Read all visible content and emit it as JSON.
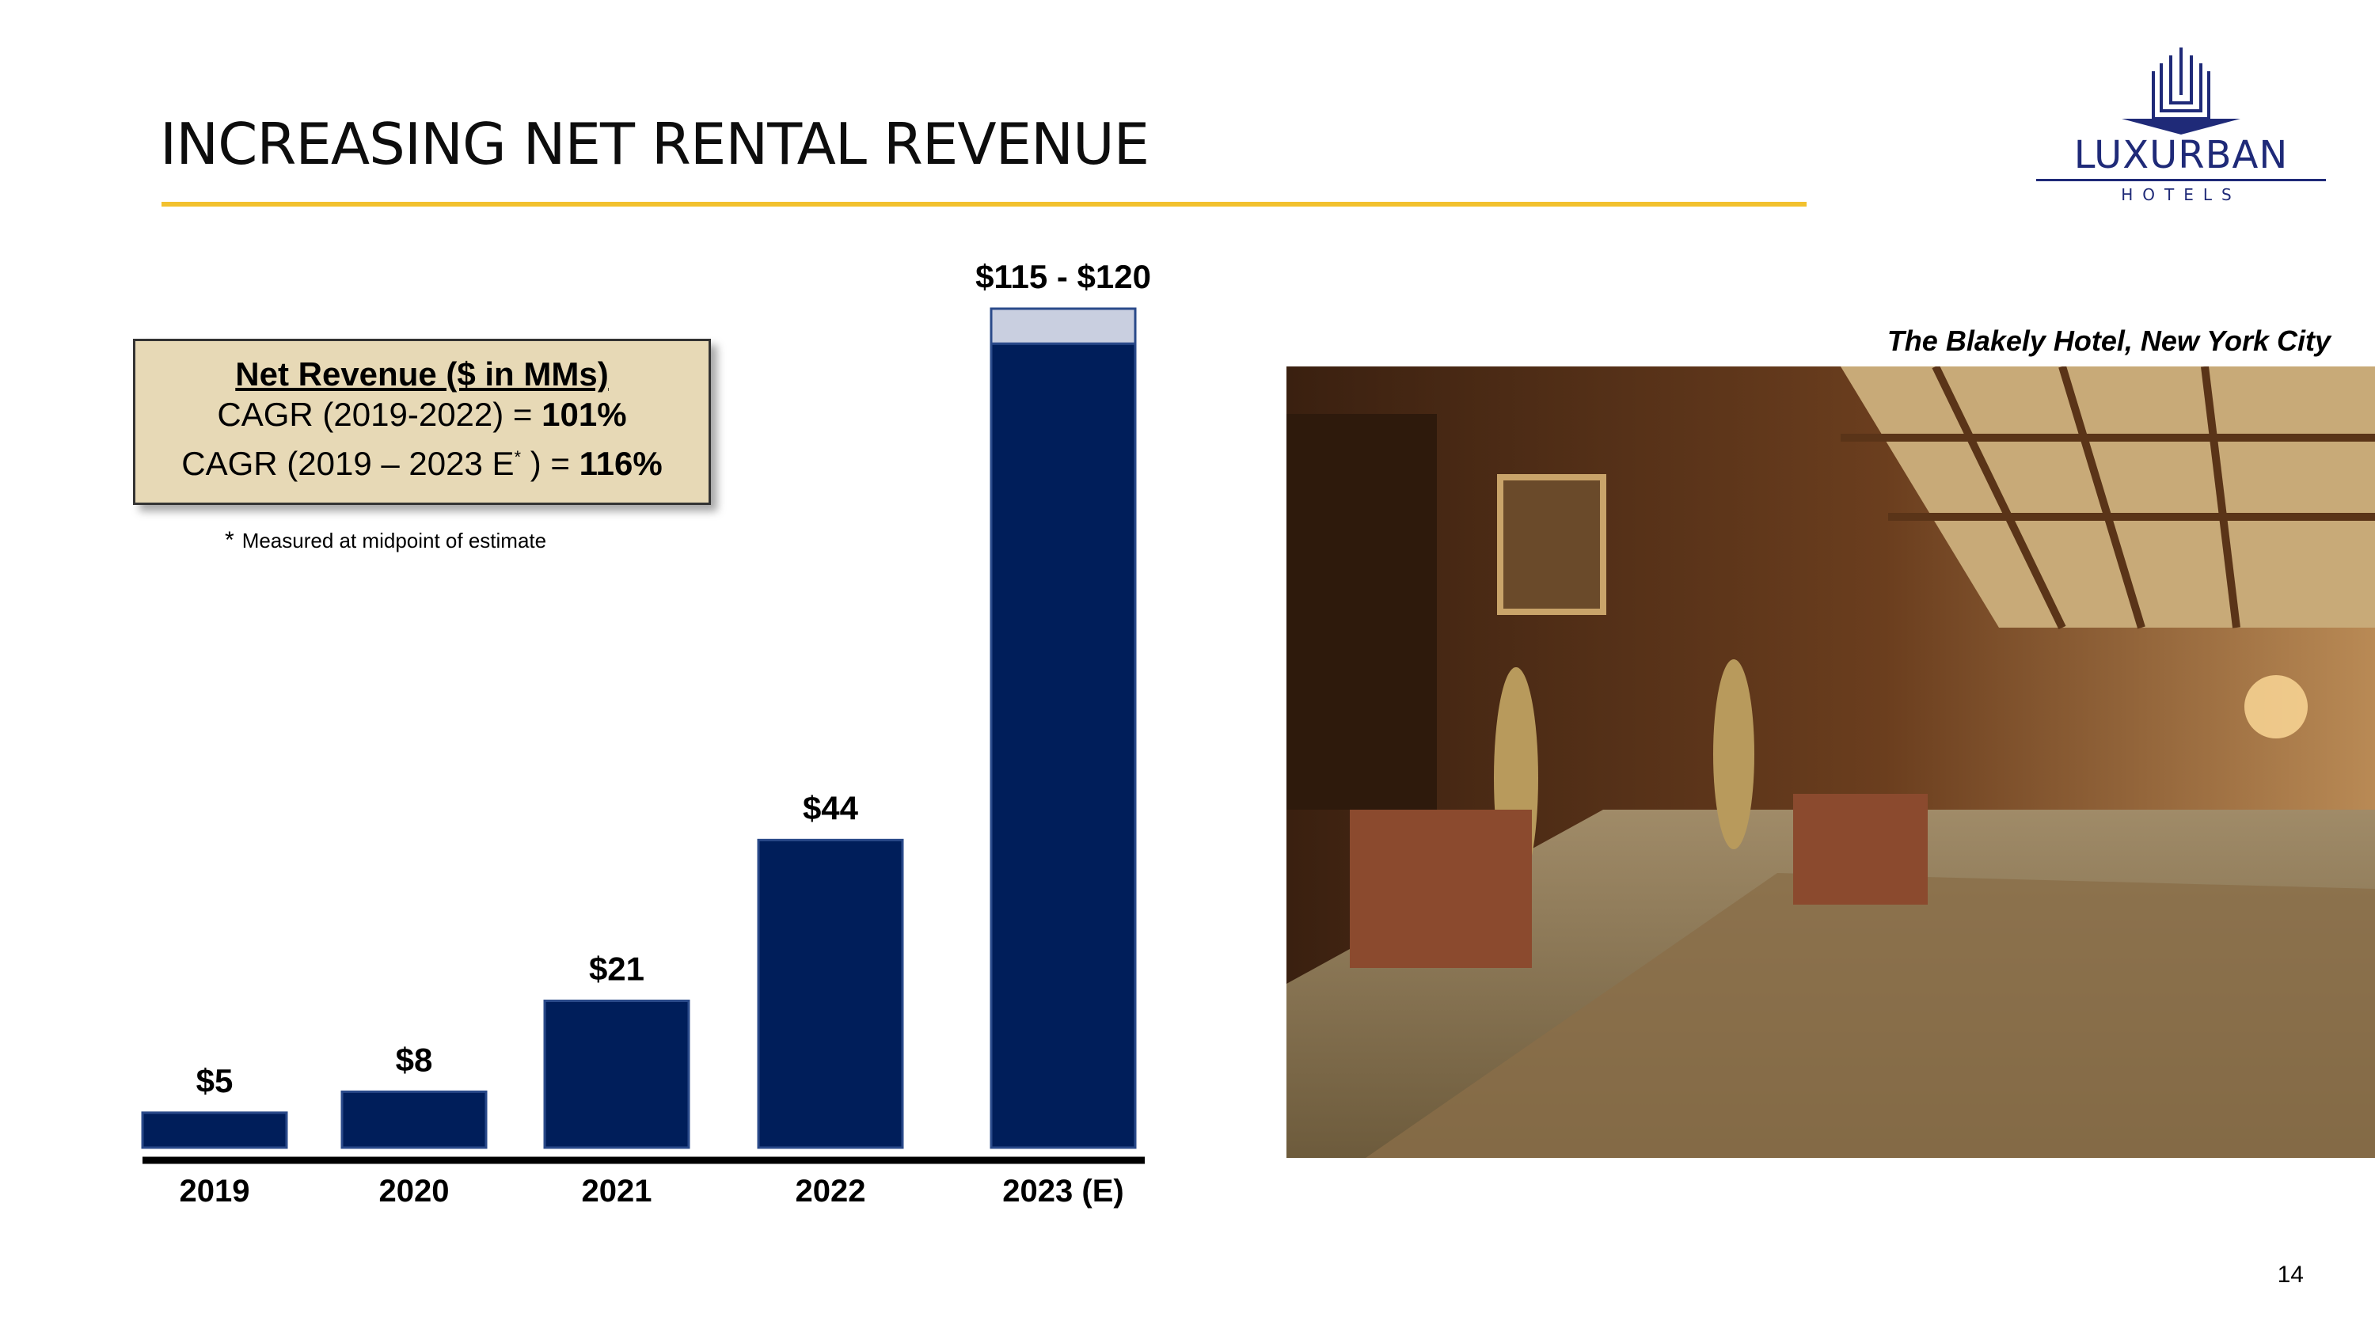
{
  "slide": {
    "title": "INCREASING NET RENTAL REVENUE",
    "page_number": "14",
    "accent_color": "#f2c12e"
  },
  "logo": {
    "word": "LUXURBAN",
    "sub": "HOTELS",
    "color": "#1f2a78"
  },
  "cagr_box": {
    "title": "Net Revenue ($ in MMs)",
    "line1_label": "CAGR (2019-2022) = ",
    "line1_value": "101%",
    "line2_label_a": "CAGR (2019 – 2023 E",
    "line2_sup": "*",
    "line2_label_b": " ) = ",
    "line2_value": "116%"
  },
  "footnote": {
    "marker": "*",
    "text": "Measured at midpoint of estimate"
  },
  "photo": {
    "caption": "The Blakely Hotel, New York City"
  },
  "chart_data": {
    "type": "bar",
    "categories": [
      "2019",
      "2020",
      "2021",
      "2022",
      "2023 (E)"
    ],
    "values": [
      5,
      8,
      21,
      44,
      115
    ],
    "range_top": {
      "category": "2023 (E)",
      "low": 115,
      "high": 120
    },
    "data_labels": [
      "$5",
      "$8",
      "$21",
      "$44",
      "$115 - $120"
    ],
    "ylim": [
      0,
      120
    ],
    "grid": false,
    "bar_color": "#001e5a",
    "range_color": "#c9cfe0",
    "axis_color": "#000000"
  }
}
